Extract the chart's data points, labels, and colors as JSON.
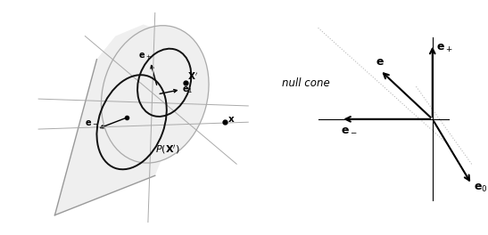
{
  "bg_color": "#ffffff",
  "cone_face_color": "#eeeeee",
  "cone_edge_color": "#aaaaaa",
  "ellipse_color": "#111111",
  "arrow_color": "#111111",
  "text_color": "#111111",
  "null_cone_label": "null cone",
  "left_xlim": [
    0,
    10
  ],
  "left_ylim": [
    0,
    10
  ],
  "right_xlim": [
    -4,
    2
  ],
  "right_ylim": [
    -3,
    2.5
  ]
}
